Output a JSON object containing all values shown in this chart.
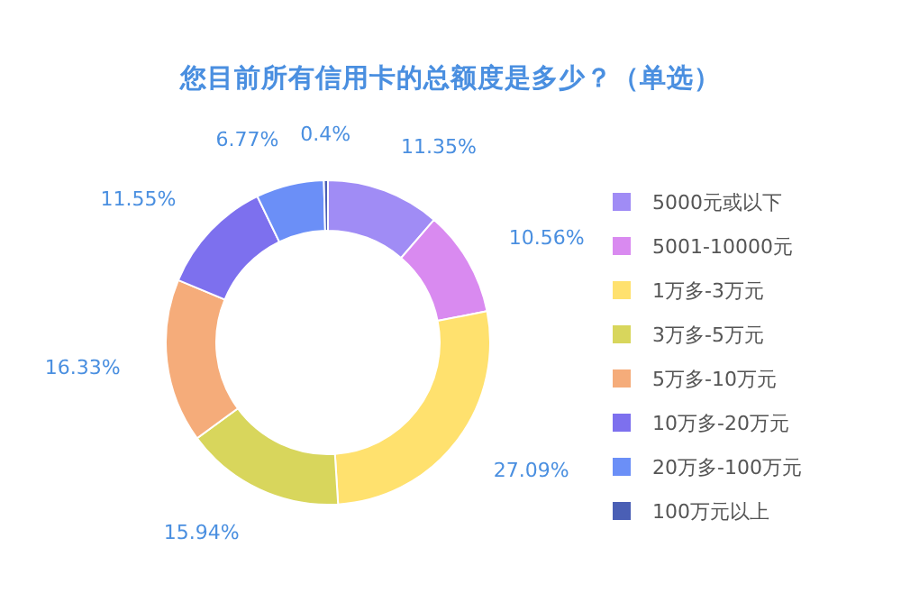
{
  "chart_data": {
    "type": "donut",
    "title": "您目前所有信用卡的总额度是多少？（单选）",
    "categories": [
      "5000元或以下",
      "5001-10000元",
      "1万多-3万元",
      "3万多-5万元",
      "5万多-10万元",
      "10万多-20万元",
      "20万多-100万元",
      "100万元以上"
    ],
    "values": [
      11.35,
      10.56,
      27.09,
      15.94,
      16.33,
      11.55,
      6.77,
      0.4
    ],
    "colors": [
      "#a08cf5",
      "#d98af0",
      "#ffe16e",
      "#d8d65c",
      "#f5ac7a",
      "#7d70ee",
      "#6b8ff7",
      "#4a5fb5"
    ],
    "value_labels": [
      "11.35%",
      "10.56%",
      "27.09%",
      "15.94%",
      "16.33%",
      "11.55%",
      "6.77%",
      "0.4%"
    ],
    "legend": "right"
  }
}
